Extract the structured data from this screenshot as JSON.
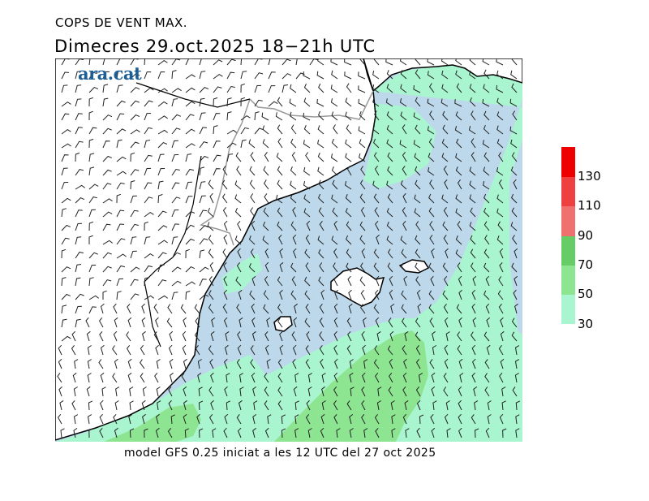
{
  "title": "COPS DE VENT MAX.",
  "subtitle": "Dimecres  29.oct.2025 18−21h UTC",
  "logo_text": "ara.cat",
  "footer": "model GFS 0.25 iniciat a les 12 UTC del 27 oct 2025",
  "legend": {
    "ticks": [
      "130",
      "110",
      "90",
      "70",
      "50",
      "30"
    ],
    "bands": [
      {
        "color": "#a9f5cf"
      },
      {
        "color": "#8ee591"
      },
      {
        "color": "#66cc66"
      },
      {
        "color": "#f07070"
      },
      {
        "color": "#ee4040"
      },
      {
        "color": "#ee0000"
      }
    ]
  },
  "colors": {
    "sea": "#bcd8ea",
    "land": "#ffffff",
    "gust_30_50": "#a9f5cf",
    "gust_50_70": "#8ee591",
    "coast": "#000000",
    "border": "#999999"
  }
}
